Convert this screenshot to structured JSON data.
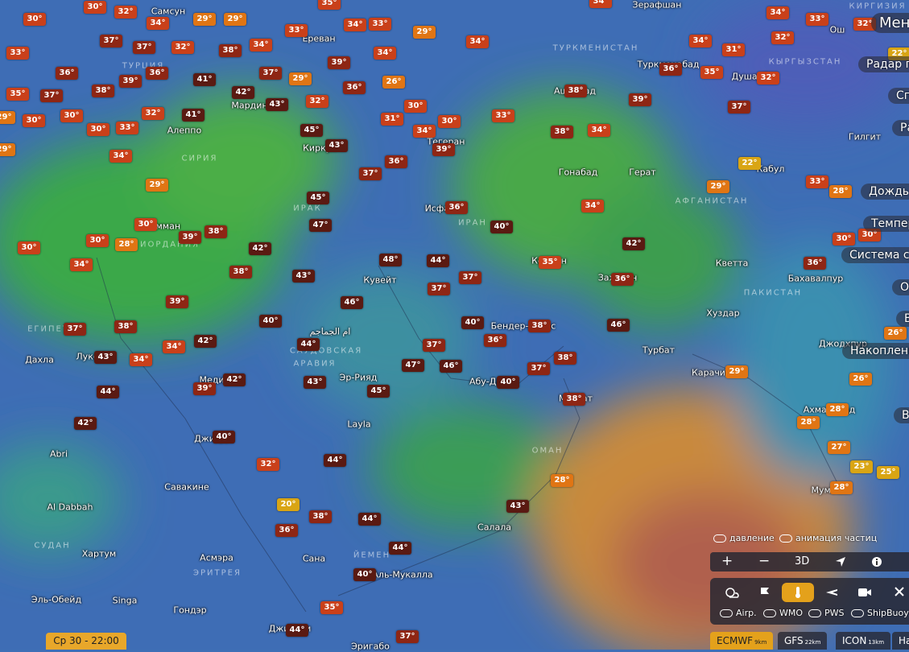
{
  "map": {
    "temperatures": [
      "30°",
      "30°",
      "32°",
      "34°",
      "29°",
      "29°",
      "33°",
      "35°",
      "34°",
      "33°",
      "29°",
      "34°",
      "34°",
      "34°",
      "33°",
      "32°",
      "22°",
      "37°",
      "37°",
      "32°",
      "38°",
      "34°",
      "34°",
      "33°",
      "36°",
      "36°",
      "39°",
      "41°",
      "37°",
      "29°",
      "39°",
      "26°",
      "36°",
      "38°",
      "42°",
      "43°",
      "32°",
      "30°",
      "31°",
      "33°",
      "30°",
      "38°",
      "39°",
      "34°",
      "32°",
      "31°",
      "36°",
      "35°",
      "32°",
      "37°",
      "35°",
      "37°",
      "29°",
      "30°",
      "30°",
      "30°",
      "33°",
      "32°",
      "41°",
      "45°",
      "43°",
      "34°",
      "38°",
      "34°",
      "39°",
      "36°",
      "29°",
      "34°",
      "29°",
      "37°",
      "22°",
      "33°",
      "28°",
      "29°",
      "45°",
      "36°",
      "34°",
      "47°",
      "40°",
      "30°",
      "38°",
      "39°",
      "30°",
      "28°",
      "30°",
      "42°",
      "42°",
      "30°",
      "30°",
      "34°",
      "48°",
      "44°",
      "38°",
      "43°",
      "37°",
      "35°",
      "36°",
      "36°",
      "37°",
      "39°",
      "46°",
      "40°",
      "40°",
      "38°",
      "46°",
      "37°",
      "38°",
      "44°",
      "42°",
      "34°",
      "36°",
      "37°",
      "26°",
      "43°",
      "34°",
      "47°",
      "46°",
      "38°",
      "37°",
      "29°",
      "26°",
      "42°",
      "43°",
      "45°",
      "40°",
      "39°",
      "44°",
      "38°",
      "28°",
      "28°",
      "42°",
      "40°",
      "27°",
      "44°",
      "32°",
      "23°",
      "25°",
      "28°",
      "28°",
      "20°",
      "43°",
      "38°",
      "44°",
      "36°",
      "44°",
      "40°",
      "35°",
      "44°",
      "37°"
    ],
    "cities": [
      "Самсун",
      "Ереван",
      "Зерафшан",
      "Ош",
      "Туркменабад",
      "Душанбе",
      "Мардин",
      "Алеппо",
      "Киркук",
      "Тегеран",
      "Ашхабад",
      "Гонабад",
      "Герат",
      "Кабул",
      "Гилгит",
      "Исфахан",
      "Амман",
      "Кветта",
      "Бахавалпур",
      "Кувейт",
      "Керман",
      "Захедан",
      "Хуздар",
      "Бендер-Аббас",
      "Дахла",
      "Луксор",
      "ام الجماجم",
      "Турбат",
      "Джодхпур",
      "Эр-Рияд",
      "Абу-Даби",
      "Карачи",
      "Медина",
      "Маскат",
      "Layla",
      "Ахмадабад",
      "Джидда",
      "Abri",
      "Савакине",
      "Мумбаи",
      "Al Dabbah",
      "Салала",
      "Хартум",
      "Асмэра",
      "Сана",
      "Аль-Мукалла",
      "Эль-Обейд",
      "Singa",
      "Гондэр",
      "Джибути",
      "Эригабо"
    ],
    "countries": [
      "ТУРЦИЯ",
      "ТУРКМЕНИСТАН",
      "КЫРГЫЗСТАН",
      "КИРГИЗИЯ",
      "СИРИЯ",
      "ИРАК",
      "ИРАН",
      "АФГАНИСТАН",
      "ИОРДАНИЯ",
      "ПАКИСТАН",
      "ЕГИПЕТ",
      "САУДОВСКАЯ",
      "АРАВИЯ",
      "ОМАН",
      "СУДАН",
      "ЙЕМЕН",
      "ЭРИТРЕЯ"
    ]
  },
  "menu": {
    "title": "Мен",
    "items": [
      "Радар пог",
      "Спу",
      "Рад",
      "Дождь, гр",
      "Темпера",
      "Система слеж",
      "Обл",
      "Во",
      "Накопление д",
      "Вы"
    ]
  },
  "controls": {
    "toggles": [
      "давление",
      "анимация частиц"
    ],
    "zoom_in": "+",
    "zoom_out": "−",
    "view3d": "3D",
    "layers": [
      "Airp.",
      "WMO",
      "PWS",
      "ShipBuoy"
    ],
    "models": [
      {
        "name": "ECMWF",
        "res": "9km"
      },
      {
        "name": "GFS",
        "res": "22km"
      },
      {
        "name": "ICON",
        "res": "13km"
      },
      {
        "name": "Ha",
        "res": ""
      }
    ]
  },
  "time": "Ср 30 - 22:00"
}
